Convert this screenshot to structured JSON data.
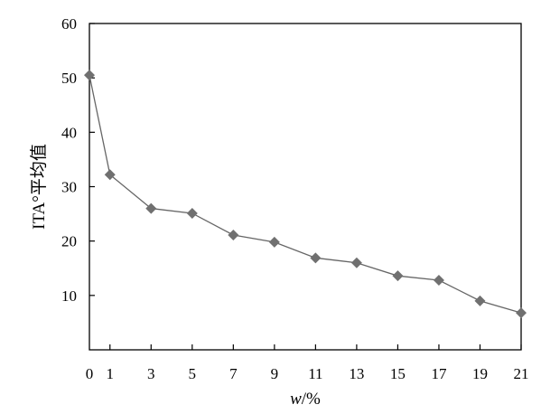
{
  "chart_data": {
    "type": "line",
    "title": "",
    "xlabel_var": "w",
    "xlabel_unit": "/%",
    "ylabel": "ITA°平均值",
    "x": [
      0,
      1,
      3,
      5,
      7,
      9,
      11,
      13,
      15,
      17,
      19,
      21
    ],
    "x_tick_labels": [
      "0",
      "1",
      "3",
      "5",
      "7",
      "9",
      "11",
      "13",
      "15",
      "17",
      "19",
      "21"
    ],
    "y_ticks": [
      "10",
      "20",
      "30",
      "40",
      "50",
      "60"
    ],
    "xlim": [
      0,
      21
    ],
    "ylim": [
      0,
      60
    ],
    "grid": false,
    "series": [
      {
        "values": [
          50.5,
          32.2,
          26.0,
          25.1,
          21.1,
          19.8,
          16.9,
          16.0,
          13.6,
          12.8,
          9.0,
          6.8
        ],
        "line_color": "#666666",
        "marker": "diamond",
        "marker_color": "#707070"
      }
    ]
  }
}
